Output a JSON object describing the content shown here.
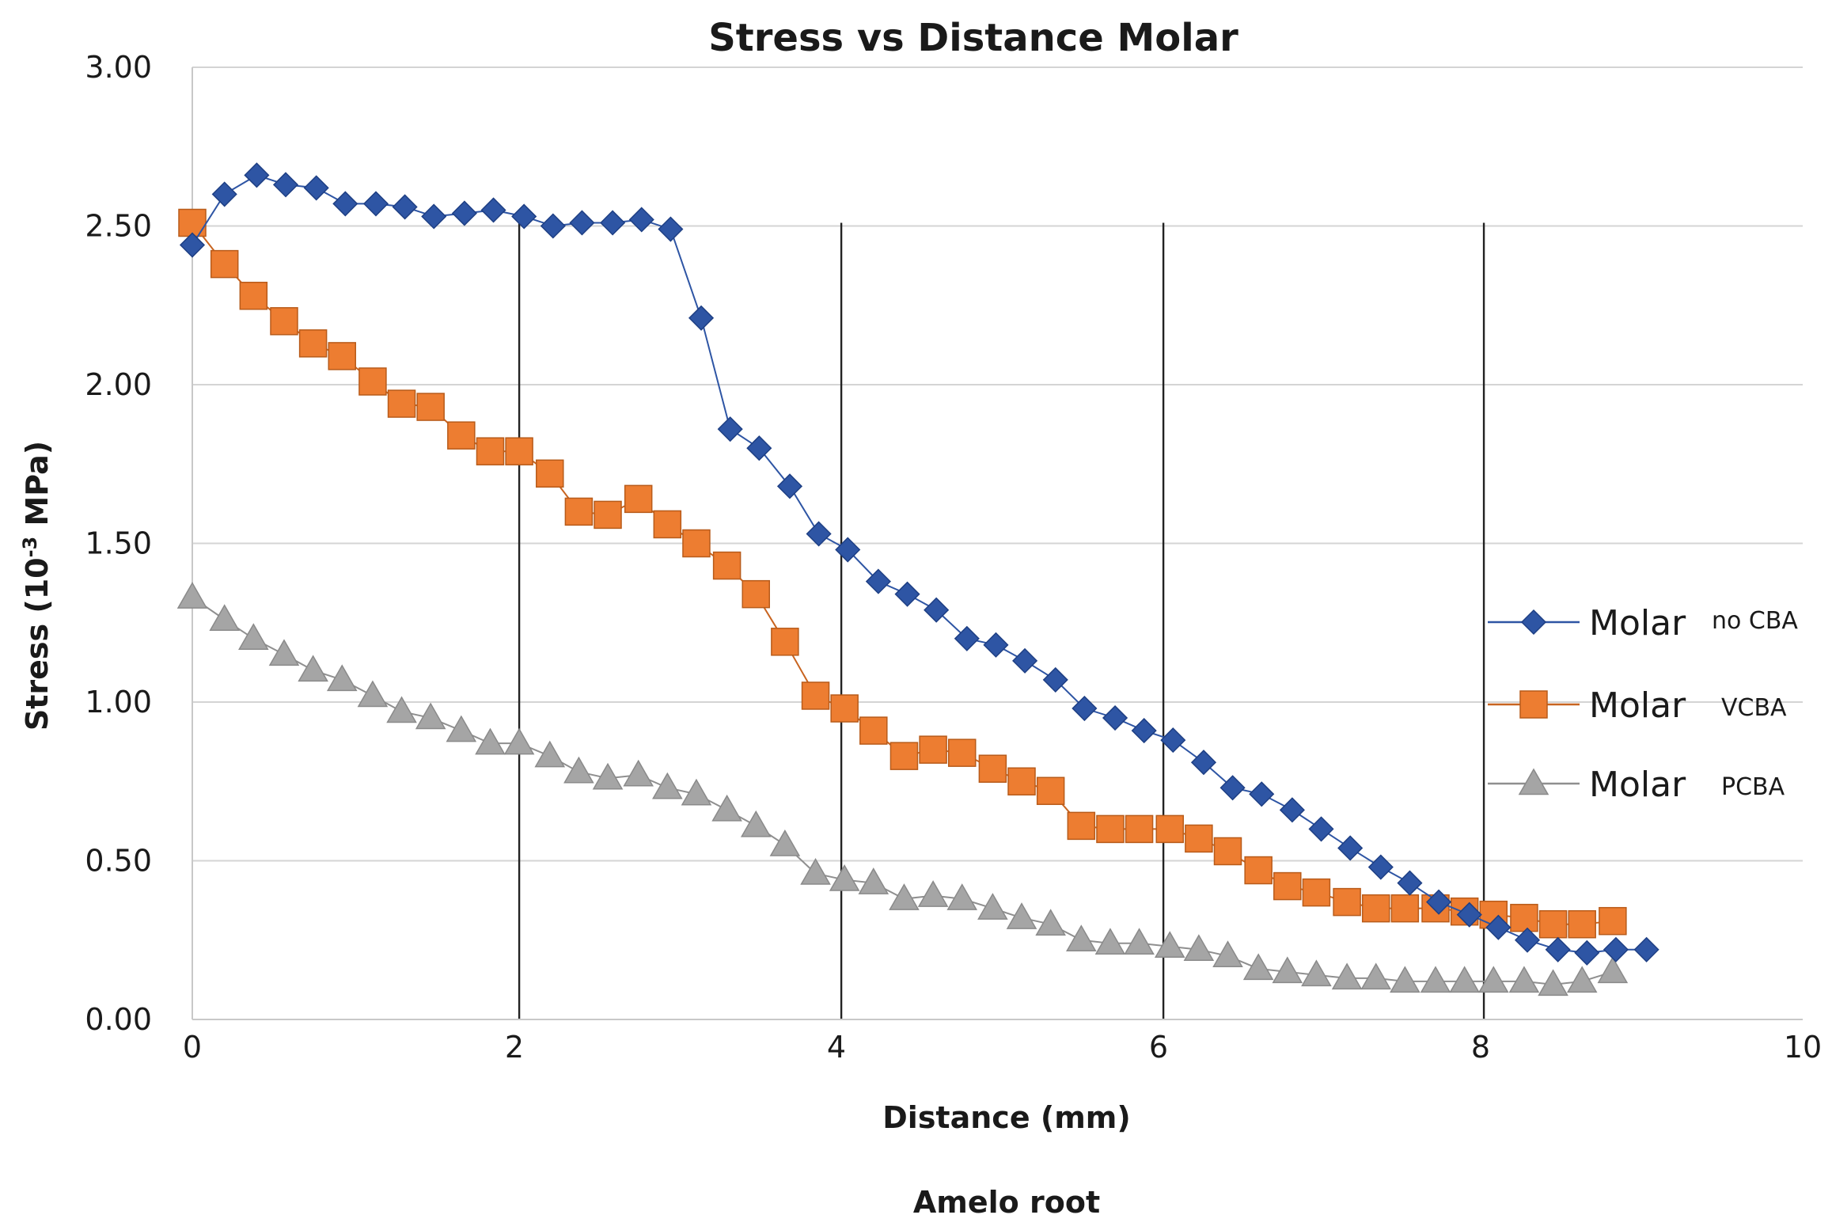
{
  "chart_data": {
    "type": "line",
    "title": "Stress vs Distance  Molar",
    "xlabel": "Distance (mm)",
    "ylabel_main": "Stress (10",
    "ylabel_sup": "-3",
    "ylabel_end": " MPa)",
    "footer": "Amelo root",
    "xlim": [
      0,
      10
    ],
    "ylim": [
      0,
      3
    ],
    "x_ticks": [
      "0",
      "2",
      "4",
      "6",
      "8",
      "10"
    ],
    "y_ticks": [
      "0.00",
      "0.50",
      "1.00",
      "1.50",
      "2.00",
      "2.50",
      "3.00"
    ],
    "x_tick_values": [
      0,
      2,
      4,
      6,
      8,
      10
    ],
    "y_tick_values": [
      0,
      0.5,
      1,
      1.5,
      2,
      2.5,
      3
    ],
    "reference_lines_x": [
      2.03,
      4.03,
      6.03,
      8.02
    ],
    "colors": {
      "no_cba": "#2e55a4",
      "vcba": "#ed7d31",
      "pcba": "#a5a5a5",
      "grid": "#d4d4d4",
      "axis": "#c8c8c8",
      "ref": "#222222"
    },
    "legend_placement": "right",
    "series": [
      {
        "key": "no_cba",
        "name": "Molar",
        "suffix": "no CBA",
        "marker": "diamond",
        "x": [
          0,
          0.2,
          0.4,
          0.58,
          0.77,
          0.95,
          1.14,
          1.32,
          1.5,
          1.69,
          1.87,
          2.06,
          2.24,
          2.42,
          2.61,
          2.79,
          2.97,
          3.16,
          3.34,
          3.52,
          3.71,
          3.89,
          4.07,
          4.26,
          4.44,
          4.62,
          4.81,
          4.99,
          5.17,
          5.36,
          5.54,
          5.73,
          5.91,
          6.09,
          6.28,
          6.46,
          6.64,
          6.83,
          7.01,
          7.19,
          7.38,
          7.56,
          7.74,
          7.93,
          8.11,
          8.29,
          8.48,
          8.66,
          8.84,
          9.03
        ],
        "y": [
          2.44,
          2.6,
          2.66,
          2.63,
          2.62,
          2.57,
          2.57,
          2.56,
          2.53,
          2.54,
          2.55,
          2.53,
          2.5,
          2.51,
          2.51,
          2.52,
          2.49,
          2.21,
          1.86,
          1.8,
          1.68,
          1.53,
          1.48,
          1.38,
          1.34,
          1.29,
          1.2,
          1.18,
          1.13,
          1.07,
          0.98,
          0.95,
          0.91,
          0.88,
          0.81,
          0.73,
          0.71,
          0.66,
          0.6,
          0.54,
          0.48,
          0.43,
          0.37,
          0.33,
          0.29,
          0.25,
          0.22,
          0.21,
          0.22,
          0.22
        ]
      },
      {
        "key": "vcba",
        "name": "Molar",
        "suffix": "VCBA",
        "marker": "square",
        "x": [
          0,
          0.2,
          0.38,
          0.57,
          0.75,
          0.93,
          1.12,
          1.3,
          1.48,
          1.67,
          1.85,
          2.03,
          2.22,
          2.4,
          2.58,
          2.77,
          2.95,
          3.13,
          3.32,
          3.5,
          3.68,
          3.87,
          4.05,
          4.23,
          4.42,
          4.6,
          4.78,
          4.97,
          5.15,
          5.33,
          5.52,
          5.7,
          5.88,
          6.07,
          6.25,
          6.43,
          6.62,
          6.8,
          6.98,
          7.17,
          7.35,
          7.53,
          7.72,
          7.9,
          8.08,
          8.27,
          8.45,
          8.63,
          8.82
        ],
        "y": [
          2.51,
          2.38,
          2.28,
          2.2,
          2.13,
          2.09,
          2.01,
          1.94,
          1.93,
          1.84,
          1.79,
          1.79,
          1.72,
          1.6,
          1.59,
          1.64,
          1.56,
          1.5,
          1.43,
          1.34,
          1.19,
          1.02,
          0.98,
          0.91,
          0.83,
          0.85,
          0.84,
          0.79,
          0.75,
          0.72,
          0.61,
          0.6,
          0.6,
          0.6,
          0.57,
          0.53,
          0.47,
          0.42,
          0.4,
          0.37,
          0.35,
          0.35,
          0.35,
          0.34,
          0.33,
          0.32,
          0.3,
          0.3,
          0.31
        ]
      },
      {
        "key": "pcba",
        "name": "Molar",
        "suffix": "PCBA",
        "marker": "triangle",
        "x": [
          0,
          0.2,
          0.38,
          0.57,
          0.75,
          0.93,
          1.12,
          1.3,
          1.48,
          1.67,
          1.85,
          2.03,
          2.22,
          2.4,
          2.58,
          2.77,
          2.95,
          3.13,
          3.32,
          3.5,
          3.68,
          3.87,
          4.05,
          4.23,
          4.42,
          4.6,
          4.78,
          4.97,
          5.15,
          5.33,
          5.52,
          5.7,
          5.88,
          6.07,
          6.25,
          6.43,
          6.62,
          6.8,
          6.98,
          7.17,
          7.35,
          7.53,
          7.72,
          7.9,
          8.08,
          8.27,
          8.45,
          8.63,
          8.82
        ],
        "y": [
          1.33,
          1.26,
          1.2,
          1.15,
          1.1,
          1.07,
          1.02,
          0.97,
          0.95,
          0.91,
          0.87,
          0.87,
          0.83,
          0.78,
          0.76,
          0.77,
          0.73,
          0.71,
          0.66,
          0.61,
          0.55,
          0.46,
          0.44,
          0.43,
          0.38,
          0.39,
          0.38,
          0.35,
          0.32,
          0.3,
          0.25,
          0.24,
          0.24,
          0.23,
          0.22,
          0.2,
          0.16,
          0.15,
          0.14,
          0.13,
          0.13,
          0.12,
          0.12,
          0.12,
          0.12,
          0.12,
          0.11,
          0.12,
          0.15
        ]
      }
    ]
  }
}
